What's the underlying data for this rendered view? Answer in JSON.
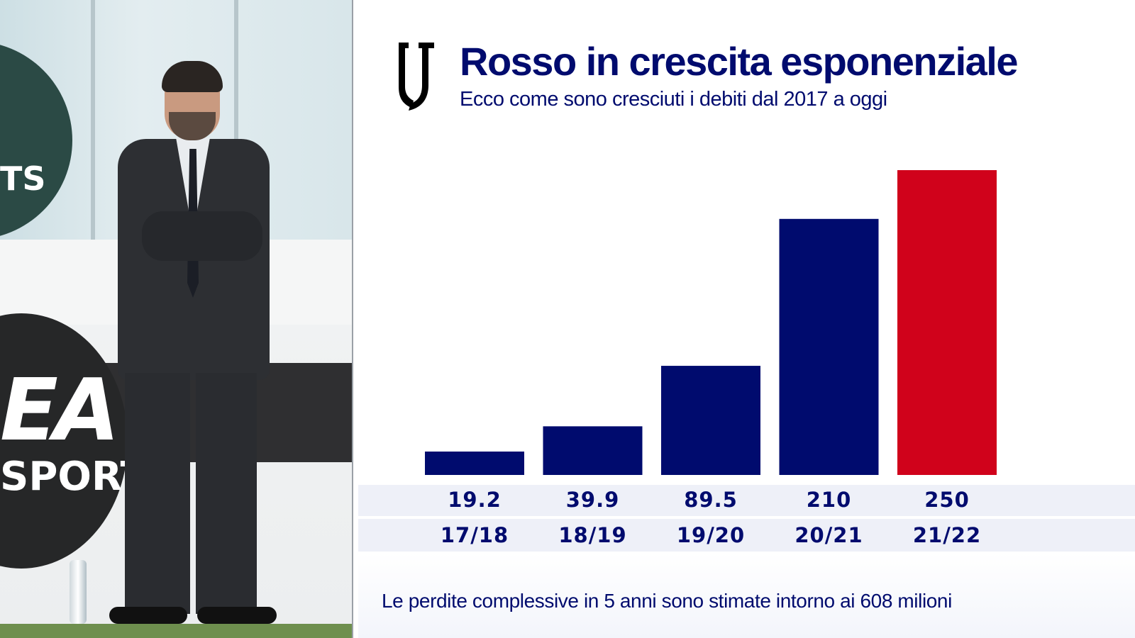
{
  "colors": {
    "primary": "#000b6e",
    "highlight": "#d0021b",
    "band": "#eef0f8"
  },
  "logo_icon": "juventus-logo-icon",
  "photo": {
    "board_text_top": "TS",
    "board_text_mid": "EA",
    "board_text_bottom": "SPORT"
  },
  "chart_data": {
    "type": "bar",
    "title": "Rosso in crescita esponenziale",
    "subtitle": "Ecco come sono cresciuti i debiti dal 2017 a oggi",
    "categories": [
      "17/18",
      "18/19",
      "19/20",
      "20/21",
      "21/22"
    ],
    "values": [
      19.2,
      39.9,
      89.5,
      210,
      250
    ],
    "value_labels": [
      "19.2",
      "39.9",
      "89.5",
      "210",
      "250"
    ],
    "highlight_index": 4,
    "ylim": [
      0,
      250
    ],
    "xlabel": "",
    "ylabel": "",
    "grid": false,
    "legend": "none",
    "footnote": "Le perdite complessive in 5 anni sono stimate intorno ai 608 milioni"
  }
}
